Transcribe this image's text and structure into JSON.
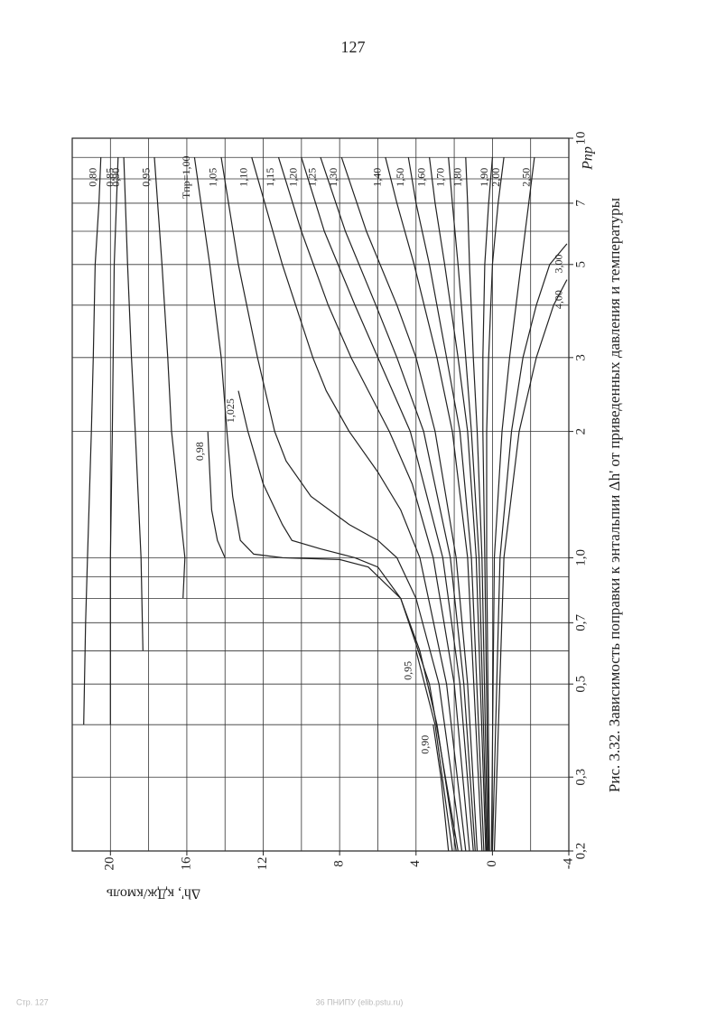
{
  "page_number": "127",
  "footer_left": "Стр. 127",
  "footer_center": "36 ПНИПУ (elib.pstu.ru)",
  "chart_data": {
    "type": "line",
    "title": "Рис. 3.32. Зависимость поправки к энтальпии Δh' от приведенных давления и температуры",
    "x_label": "Pпр",
    "y_label": "Δh', кДж/кмоль",
    "log_x": true,
    "color": "#222222",
    "grid": true,
    "xlim": [
      0.2,
      10
    ],
    "ylim": [
      -4,
      22
    ],
    "xticks": [
      {
        "value": 0.2,
        "label": "0,2"
      },
      {
        "value": 0.3,
        "label": "0,3"
      },
      {
        "value": 0.5,
        "label": "0,5"
      },
      {
        "value": 0.7,
        "label": "0,7"
      },
      {
        "value": 1,
        "label": "1,0"
      },
      2,
      3,
      5,
      7,
      10
    ],
    "yticks": [
      -4,
      0,
      4,
      8,
      12,
      16,
      20
    ],
    "xgrid": [
      0.3,
      0.4,
      0.5,
      0.6,
      0.7,
      0.8,
      0.9,
      1,
      2,
      3,
      4,
      5,
      6,
      7,
      8,
      9
    ],
    "ygrid": [
      -2,
      0,
      2,
      4,
      6,
      8,
      10,
      12,
      14,
      16,
      18,
      20
    ],
    "series": [
      {
        "name": "0,80",
        "x": [
          0.4,
          0.7,
          1,
          2,
          3,
          5,
          7,
          9
        ],
        "values": [
          21.4,
          21.3,
          21.2,
          21.0,
          20.9,
          20.8,
          20.6,
          20.5
        ]
      },
      {
        "name": "0,85",
        "x": [
          0.4,
          1,
          2,
          5,
          9
        ],
        "values": [
          20.0,
          20.0,
          19.9,
          19.8,
          19.6
        ]
      },
      {
        "name": "0,90",
        "x": [
          0.6,
          1,
          2,
          3,
          5,
          9
        ],
        "values": [
          18.3,
          18.4,
          18.7,
          18.9,
          19.1,
          19.3
        ]
      },
      {
        "name": "0,95",
        "x": [
          0.8,
          1,
          2,
          3,
          5,
          9
        ],
        "values": [
          16.2,
          16.1,
          16.8,
          17.0,
          17.3,
          17.7
        ]
      },
      {
        "name": "0,98",
        "x": [
          1.0,
          1.1,
          1.3,
          1.6,
          2
        ],
        "values": [
          14.0,
          14.4,
          14.7,
          14.8,
          14.9
        ]
      },
      {
        "name": "Tпр=1,00",
        "x": [
          0.2,
          0.4,
          0.6,
          0.8,
          0.95,
          0.99,
          1.0,
          1.02,
          1.1,
          1.4,
          2,
          3,
          5,
          9
        ],
        "values": [
          1.9,
          2.9,
          3.8,
          4.8,
          6.5,
          8.0,
          11.0,
          12.5,
          13.2,
          13.6,
          13.9,
          14.2,
          14.8,
          15.6
        ]
      },
      {
        "name": "1,025",
        "x": [
          0.2,
          0.5,
          0.8,
          0.95,
          1.0,
          1.05,
          1.1,
          1.2,
          1.5,
          2,
          2.5
        ],
        "values": [
          1.8,
          3.3,
          4.8,
          6.0,
          7.2,
          9.0,
          10.5,
          11.0,
          12.0,
          12.8,
          13.3
        ]
      },
      {
        "name": "1,05",
        "x": [
          0.2,
          0.5,
          0.8,
          1.0,
          1.1,
          1.2,
          1.4,
          1.7,
          2,
          3,
          5,
          9
        ],
        "values": [
          1.6,
          2.8,
          4.0,
          5.0,
          6.0,
          7.5,
          9.5,
          10.8,
          11.4,
          12.3,
          13.3,
          14.2
        ]
      },
      {
        "name": "1,10",
        "x": [
          0.2,
          0.5,
          1.0,
          1.3,
          1.6,
          2,
          2.5,
          3,
          5,
          9
        ],
        "values": [
          1.4,
          2.4,
          3.8,
          4.8,
          6.0,
          7.5,
          8.7,
          9.4,
          11.0,
          12.6
        ]
      },
      {
        "name": "1,15",
        "x": [
          0.2,
          0.5,
          1.0,
          1.5,
          2,
          2.5,
          3,
          4,
          6,
          9
        ],
        "values": [
          1.2,
          2.0,
          3.1,
          4.2,
          5.4,
          6.5,
          7.4,
          8.6,
          10.0,
          11.2
        ]
      },
      {
        "name": "1,20",
        "x": [
          0.2,
          0.5,
          1,
          2,
          3,
          4,
          6,
          9
        ],
        "values": [
          1.0,
          1.7,
          2.6,
          4.3,
          6.0,
          7.2,
          8.8,
          10.0
        ]
      },
      {
        "name": "1,25",
        "x": [
          0.2,
          0.5,
          1,
          2,
          3,
          4,
          6,
          9
        ],
        "values": [
          0.9,
          1.5,
          2.2,
          3.6,
          5.0,
          6.1,
          7.7,
          9.0
        ]
      },
      {
        "name": "1,30",
        "x": [
          0.2,
          0.5,
          1,
          2,
          3,
          4,
          6,
          9
        ],
        "values": [
          0.8,
          1.3,
          1.9,
          3.0,
          4.0,
          5.0,
          6.6,
          7.9
        ]
      },
      {
        "name": "1,40",
        "x": [
          0.2,
          1,
          2,
          3,
          5,
          7,
          9
        ],
        "values": [
          0.55,
          1.3,
          2.1,
          2.9,
          4.1,
          5.0,
          5.6
        ]
      },
      {
        "name": "1,50",
        "x": [
          0.2,
          1,
          2,
          3,
          5,
          7,
          9
        ],
        "values": [
          0.45,
          1.1,
          1.7,
          2.4,
          3.3,
          4.0,
          4.4
        ]
      },
      {
        "name": "1,60",
        "x": [
          0.2,
          1,
          2,
          3,
          5,
          7,
          9
        ],
        "values": [
          0.35,
          0.85,
          1.3,
          1.8,
          2.5,
          3.0,
          3.3
        ]
      },
      {
        "name": "1,70",
        "x": [
          0.2,
          1,
          2,
          3,
          5,
          7,
          9
        ],
        "values": [
          0.3,
          0.7,
          1.1,
          1.4,
          1.8,
          2.1,
          2.3
        ]
      },
      {
        "name": "1,80",
        "x": [
          0.2,
          1,
          2,
          3,
          5,
          7,
          9
        ],
        "values": [
          0.25,
          0.55,
          0.8,
          1.0,
          1.2,
          1.3,
          1.4
        ]
      },
      {
        "name": "1,90",
        "x": [
          0.2,
          1,
          2,
          3,
          5,
          7,
          9
        ],
        "values": [
          0.2,
          0.4,
          0.5,
          0.5,
          0.4,
          0.2,
          0
        ]
      },
      {
        "name": "2,00",
        "x": [
          0.2,
          1,
          2,
          3,
          5,
          7,
          9
        ],
        "values": [
          0.15,
          0.3,
          0.3,
          0.2,
          0,
          -0.3,
          -0.6
        ]
      },
      {
        "name": "2,50",
        "x": [
          0.2,
          1,
          2,
          3,
          5,
          7,
          9
        ],
        "values": [
          0.05,
          -0.1,
          -0.5,
          -0.9,
          -1.5,
          -1.9,
          -2.2
        ]
      },
      {
        "name": "3,00",
        "x": [
          0.2,
          1,
          2,
          3,
          4,
          5,
          5.6
        ],
        "values": [
          0,
          -0.4,
          -1.0,
          -1.6,
          -2.3,
          -3.0,
          -3.9
        ]
      },
      {
        "name": "4,00",
        "x": [
          0.2,
          1,
          2,
          3,
          4,
          4.6
        ],
        "values": [
          -0.1,
          -0.6,
          -1.4,
          -2.3,
          -3.2,
          -3.9
        ]
      },
      {
        "name": "0,90",
        "x": [
          0.2,
          0.3,
          0.4
        ],
        "values": [
          2.3,
          2.7,
          3.1
        ]
      },
      {
        "name": "0,95",
        "x": [
          0.2,
          0.4,
          0.6
        ],
        "values": [
          2.1,
          3.0,
          4.0
        ]
      }
    ]
  }
}
